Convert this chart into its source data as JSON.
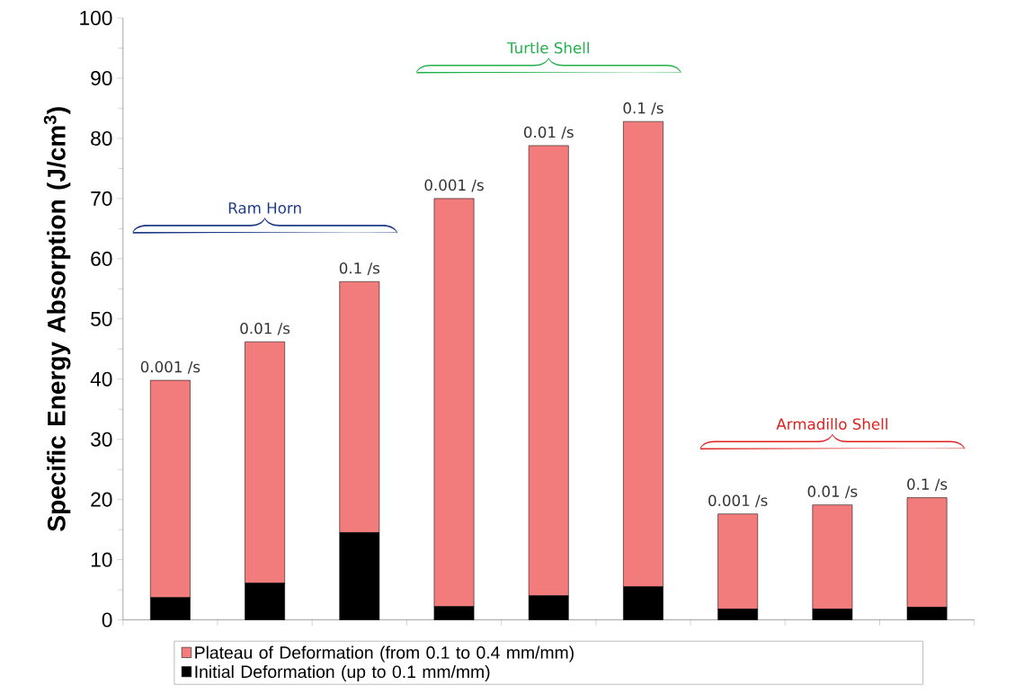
{
  "chart_data": {
    "type": "bar",
    "stacked": true,
    "ylabel": "Specific Energy Absorption (J/cm$^{3}$)",
    "categories": [
      "0.001 /s",
      "0.01 /s",
      "0.1 /s",
      "0.001 /s",
      "0.01 /s",
      "0.1 /s",
      "0.001 /s",
      "0.01 /s",
      "0.1 /s"
    ],
    "series": [
      {
        "name": "Initial Deformation (up to 0.1 mm/mm)",
        "color": "#000000",
        "values": [
          3.7,
          6.1,
          14.5,
          2.2,
          4.0,
          5.5,
          1.8,
          1.8,
          2.1
        ]
      },
      {
        "name": "Plateau of Deformation (from 0.1 to 0.4 mm/mm)",
        "color": "#f27c7c",
        "values": [
          36.1,
          40.1,
          41.7,
          67.8,
          74.8,
          77.3,
          15.8,
          17.3,
          18.2
        ]
      }
    ],
    "ylim": [
      0,
      100
    ],
    "yticks": [
      0,
      10,
      20,
      30,
      40,
      50,
      60,
      70,
      80,
      90,
      100
    ],
    "annotations": [
      "Ram Horn",
      "Turtle Shell",
      "Armadillo Shell"
    ],
    "legend": "bottom",
    "grid": false
  }
}
